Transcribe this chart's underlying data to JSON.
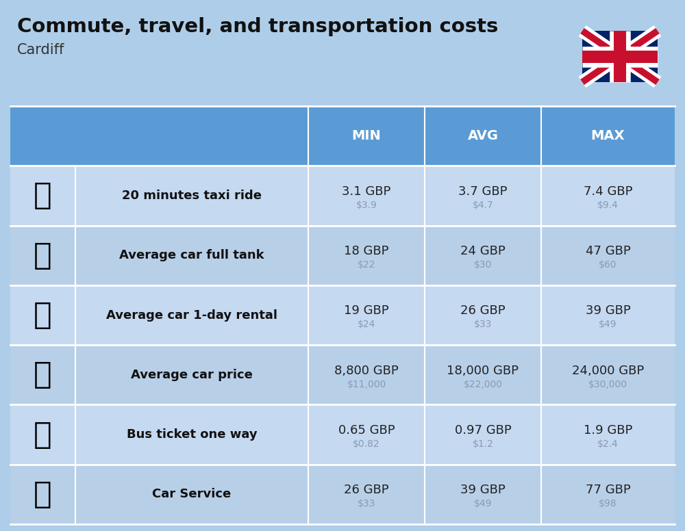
{
  "title": "Commute, travel, and transportation costs",
  "subtitle": "Cardiff",
  "bg_color": "#aecde8",
  "header_bg": "#5b9bd5",
  "header_text_color": "#ffffff",
  "row_bg_even": "#c5d9f1",
  "row_bg_odd": "#b8cfe8",
  "separator_color": "#ffffff",
  "col_headers": [
    "MIN",
    "AVG",
    "MAX"
  ],
  "rows": [
    {
      "label": "20 minutes taxi ride",
      "min_gbp": "3.1 GBP",
      "min_usd": "$3.9",
      "avg_gbp": "3.7 GBP",
      "avg_usd": "$4.7",
      "max_gbp": "7.4 GBP",
      "max_usd": "$9.4"
    },
    {
      "label": "Average car full tank",
      "min_gbp": "18 GBP",
      "min_usd": "$22",
      "avg_gbp": "24 GBP",
      "avg_usd": "$30",
      "max_gbp": "47 GBP",
      "max_usd": "$60"
    },
    {
      "label": "Average car 1-day rental",
      "min_gbp": "19 GBP",
      "min_usd": "$24",
      "avg_gbp": "26 GBP",
      "avg_usd": "$33",
      "max_gbp": "39 GBP",
      "max_usd": "$49"
    },
    {
      "label": "Average car price",
      "min_gbp": "8,800 GBP",
      "min_usd": "$11,000",
      "avg_gbp": "18,000 GBP",
      "avg_usd": "$22,000",
      "max_gbp": "24,000 GBP",
      "max_usd": "$30,000"
    },
    {
      "label": "Bus ticket one way",
      "min_gbp": "0.65 GBP",
      "min_usd": "$0.82",
      "avg_gbp": "0.97 GBP",
      "avg_usd": "$1.2",
      "max_gbp": "1.9 GBP",
      "max_usd": "$2.4"
    },
    {
      "label": "Car Service",
      "min_gbp": "26 GBP",
      "min_usd": "$33",
      "avg_gbp": "39 GBP",
      "avg_usd": "$49",
      "max_gbp": "77 GBP",
      "max_usd": "$98"
    }
  ],
  "title_fontsize": 21,
  "subtitle_fontsize": 15,
  "header_fontsize": 14,
  "label_fontsize": 13,
  "value_fontsize": 13,
  "usd_fontsize": 10,
  "usd_color": "#8a9ab5",
  "title_color": "#111111",
  "subtitle_color": "#333333",
  "label_color": "#111111",
  "value_color": "#222222",
  "flag_blue": "#012169",
  "flag_red": "#C8102E"
}
